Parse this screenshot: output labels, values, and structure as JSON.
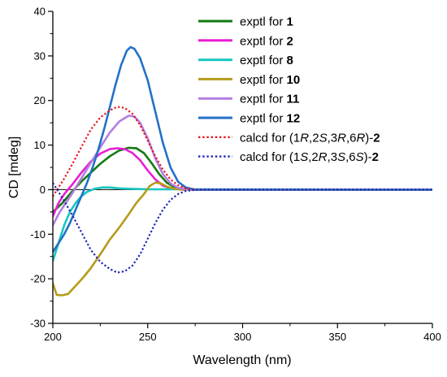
{
  "chart_data": {
    "type": "line",
    "title": "",
    "xlabel": "Wavelength (nm)",
    "ylabel": "CD [mdeg]",
    "xlim": [
      200,
      400
    ],
    "ylim": [
      -30,
      40
    ],
    "x_ticks": [
      "200",
      "250",
      "300",
      "350",
      "400"
    ],
    "y_ticks": [
      "-30",
      "-20",
      "-10",
      "0",
      "10",
      "20",
      "30",
      "40"
    ],
    "zero_line": true,
    "legend_position": "top-right",
    "series": [
      {
        "legend": [
          {
            "t": "exptl for "
          },
          {
            "t": "1",
            "s": "b"
          }
        ],
        "color": "#117a11",
        "dash": "solid",
        "points": [
          [
            200,
            -5
          ],
          [
            205,
            -3
          ],
          [
            210,
            -0.5
          ],
          [
            215,
            1.8
          ],
          [
            220,
            3.8
          ],
          [
            225,
            5.8
          ],
          [
            230,
            7.5
          ],
          [
            235,
            8.8
          ],
          [
            240,
            9.4
          ],
          [
            244,
            9.3
          ],
          [
            248,
            8.2
          ],
          [
            252,
            6
          ],
          [
            256,
            3.5
          ],
          [
            260,
            1.6
          ],
          [
            264,
            0.6
          ],
          [
            268,
            0.1
          ],
          [
            275,
            0
          ],
          [
            400,
            0
          ]
        ]
      },
      {
        "legend": [
          {
            "t": "exptl for "
          },
          {
            "t": "2",
            "s": "b"
          }
        ],
        "color": "#e91ed3",
        "dash": "solid",
        "points": [
          [
            200,
            -6
          ],
          [
            203,
            -3
          ],
          [
            206,
            -1
          ],
          [
            210,
            1
          ],
          [
            215,
            3.8
          ],
          [
            220,
            6.3
          ],
          [
            225,
            8.1
          ],
          [
            230,
            9.1
          ],
          [
            234,
            9.3
          ],
          [
            238,
            9.1
          ],
          [
            242,
            8.2
          ],
          [
            246,
            6.6
          ],
          [
            250,
            4.3
          ],
          [
            254,
            2.3
          ],
          [
            258,
            0.9
          ],
          [
            262,
            0.3
          ],
          [
            268,
            0
          ],
          [
            400,
            0
          ]
        ]
      },
      {
        "legend": [
          {
            "t": "exptl for "
          },
          {
            "t": "8",
            "s": "b"
          }
        ],
        "color": "#18c7c2",
        "dash": "solid",
        "points": [
          [
            200,
            -16
          ],
          [
            203,
            -12
          ],
          [
            206,
            -8
          ],
          [
            209,
            -5
          ],
          [
            212,
            -3
          ],
          [
            215,
            -1.5
          ],
          [
            218,
            -0.5
          ],
          [
            222,
            0.2
          ],
          [
            226,
            0.5
          ],
          [
            230,
            0.5
          ],
          [
            235,
            0.3
          ],
          [
            240,
            0.2
          ],
          [
            250,
            0.1
          ],
          [
            400,
            0
          ]
        ]
      },
      {
        "legend": [
          {
            "t": "exptl for "
          },
          {
            "t": "10",
            "s": "b"
          }
        ],
        "color": "#b59c1b",
        "dash": "solid",
        "points": [
          [
            200,
            -21
          ],
          [
            202,
            -23.6
          ],
          [
            205,
            -23.7
          ],
          [
            208,
            -23.4
          ],
          [
            212,
            -21.6
          ],
          [
            216,
            -19.7
          ],
          [
            220,
            -17.6
          ],
          [
            225,
            -14.5
          ],
          [
            230,
            -11.2
          ],
          [
            235,
            -8.5
          ],
          [
            240,
            -5.5
          ],
          [
            244,
            -3
          ],
          [
            248,
            -1
          ],
          [
            251,
            0.8
          ],
          [
            254,
            1.6
          ],
          [
            257,
            1.4
          ],
          [
            260,
            0.7
          ],
          [
            264,
            0.2
          ],
          [
            270,
            0
          ],
          [
            400,
            0
          ]
        ]
      },
      {
        "legend": [
          {
            "t": "exptl for "
          },
          {
            "t": "11",
            "s": "b"
          }
        ],
        "color": "#b27ee0",
        "dash": "solid",
        "points": [
          [
            200,
            -8
          ],
          [
            203,
            -5.5
          ],
          [
            206,
            -3.5
          ],
          [
            210,
            -1
          ],
          [
            215,
            2.5
          ],
          [
            220,
            6
          ],
          [
            225,
            9.5
          ],
          [
            230,
            12.8
          ],
          [
            235,
            15.3
          ],
          [
            240,
            16.6
          ],
          [
            243,
            16.4
          ],
          [
            246,
            15
          ],
          [
            250,
            11.5
          ],
          [
            254,
            7
          ],
          [
            258,
            3.5
          ],
          [
            262,
            1.4
          ],
          [
            266,
            0.4
          ],
          [
            272,
            0
          ],
          [
            400,
            0
          ]
        ]
      },
      {
        "legend": [
          {
            "t": "exptl for "
          },
          {
            "t": "12",
            "s": "b"
          }
        ],
        "color": "#2371c7",
        "dash": "solid",
        "points": [
          [
            200,
            -14
          ],
          [
            203,
            -12
          ],
          [
            206,
            -10
          ],
          [
            209,
            -7.5
          ],
          [
            212,
            -4.5
          ],
          [
            215,
            -1.5
          ],
          [
            218,
            1.5
          ],
          [
            221,
            5
          ],
          [
            224,
            9
          ],
          [
            227,
            13.5
          ],
          [
            230,
            18.5
          ],
          [
            233,
            23.5
          ],
          [
            236,
            28
          ],
          [
            239,
            31.2
          ],
          [
            241,
            32
          ],
          [
            243,
            31.6
          ],
          [
            246,
            29.5
          ],
          [
            250,
            24.5
          ],
          [
            254,
            17.5
          ],
          [
            258,
            10.5
          ],
          [
            262,
            5
          ],
          [
            266,
            1.8
          ],
          [
            270,
            0.5
          ],
          [
            275,
            0
          ],
          [
            400,
            0
          ]
        ]
      },
      {
        "legend": [
          {
            "t": "calcd for ("
          },
          {
            "t": "1",
            "s": "n"
          },
          {
            "t": "R",
            "s": "i"
          },
          {
            "t": ",2"
          },
          {
            "t": "S",
            "s": "i"
          },
          {
            "t": ",3"
          },
          {
            "t": "R",
            "s": "i"
          },
          {
            "t": ",6"
          },
          {
            "t": "R",
            "s": "i"
          },
          {
            "t": ")-"
          },
          {
            "t": "2",
            "s": "b"
          }
        ],
        "color": "#e8141c",
        "dash": "dotted",
        "points": [
          [
            200,
            -1.5
          ],
          [
            203,
            0.5
          ],
          [
            206,
            2.5
          ],
          [
            210,
            5.5
          ],
          [
            215,
            9.5
          ],
          [
            220,
            13.5
          ],
          [
            225,
            16.2
          ],
          [
            230,
            17.8
          ],
          [
            234,
            18.6
          ],
          [
            238,
            18.3
          ],
          [
            242,
            17
          ],
          [
            246,
            14.5
          ],
          [
            250,
            11
          ],
          [
            254,
            7.5
          ],
          [
            258,
            4.5
          ],
          [
            262,
            2.3
          ],
          [
            266,
            1
          ],
          [
            270,
            0.3
          ],
          [
            276,
            0
          ],
          [
            400,
            0
          ]
        ]
      },
      {
        "legend": [
          {
            "t": "calcd for ("
          },
          {
            "t": "1",
            "s": "n"
          },
          {
            "t": "S",
            "s": "i"
          },
          {
            "t": ",2"
          },
          {
            "t": "R",
            "s": "i"
          },
          {
            "t": ",3"
          },
          {
            "t": "S",
            "s": "i"
          },
          {
            "t": ",6"
          },
          {
            "t": "S",
            "s": "i"
          },
          {
            "t": ")-"
          },
          {
            "t": "2",
            "s": "b"
          }
        ],
        "color": "#1e24b8",
        "dash": "dotted",
        "points": [
          [
            200,
            1.5
          ],
          [
            203,
            -0.5
          ],
          [
            206,
            -2.5
          ],
          [
            210,
            -5.5
          ],
          [
            215,
            -9.5
          ],
          [
            220,
            -13.5
          ],
          [
            225,
            -16.2
          ],
          [
            230,
            -17.8
          ],
          [
            234,
            -18.6
          ],
          [
            238,
            -18.3
          ],
          [
            242,
            -17
          ],
          [
            246,
            -14.5
          ],
          [
            250,
            -11
          ],
          [
            254,
            -7.5
          ],
          [
            258,
            -4.5
          ],
          [
            262,
            -2.3
          ],
          [
            266,
            -1
          ],
          [
            270,
            -0.3
          ],
          [
            276,
            0
          ],
          [
            400,
            0
          ]
        ]
      }
    ]
  }
}
